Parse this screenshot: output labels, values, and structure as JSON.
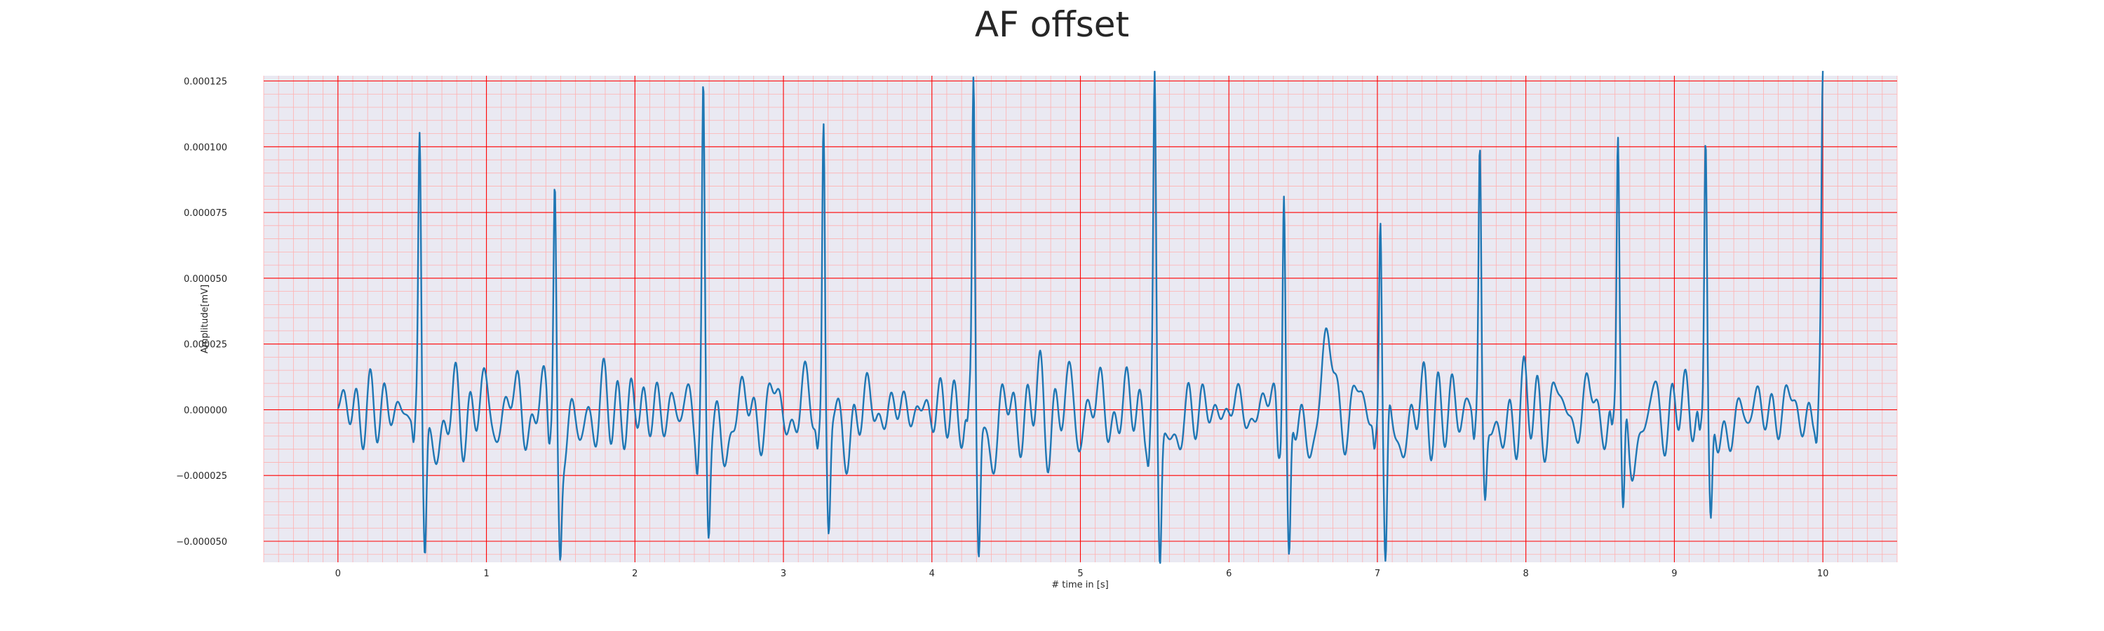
{
  "chart_data": {
    "type": "line",
    "title": "AF offset",
    "xlabel": "# time in [s]",
    "ylabel": "Amplitude[mV]",
    "xlim": [
      -0.5,
      10.5
    ],
    "ylim": [
      -5.8e-05,
      0.000127
    ],
    "x_ticks": [
      0,
      1,
      2,
      3,
      4,
      5,
      6,
      7,
      8,
      9,
      10
    ],
    "x_tick_labels": [
      "0",
      "1",
      "2",
      "3",
      "4",
      "5",
      "6",
      "7",
      "8",
      "9",
      "10"
    ],
    "y_ticks": [
      -5e-05,
      -2.5e-05,
      0,
      2.5e-05,
      5e-05,
      7.5e-05,
      0.0001,
      0.000125
    ],
    "y_tick_labels": [
      "−0.000050",
      "−0.000025",
      "0.000000",
      "0.000025",
      "0.000050",
      "0.000075",
      "0.000100",
      "0.000125"
    ],
    "grid": true,
    "major_grid_color": "#ff0000",
    "minor_grid_color": "#ffb0b0",
    "background_color": "#eae9f2",
    "line_color": "#1f77b4",
    "series": [
      {
        "name": "",
        "peaks": [
          {
            "t": 0.55,
            "r": 0.0001,
            "s": -5.4e-05
          },
          {
            "t": 1.46,
            "r": 8.6e-05,
            "s": -4.7e-05
          },
          {
            "t": 2.46,
            "r": 0.000117,
            "s": -4.3e-05
          },
          {
            "t": 3.27,
            "r": 0.000116,
            "s": -4.2e-05
          },
          {
            "t": 4.28,
            "r": 0.000122,
            "s": -5.2e-05
          },
          {
            "t": 5.5,
            "r": 0.000118,
            "s": -5.6e-05
          },
          {
            "t": 6.37,
            "r": 9.6e-05,
            "s": -6.3e-05
          },
          {
            "t": 7.02,
            "r": 8e-05,
            "s": -6.3e-05
          },
          {
            "t": 7.69,
            "r": 0.000103,
            "s": -3.1e-05
          },
          {
            "t": 8.62,
            "r": 0.000105,
            "s": -5.2e-05
          },
          {
            "t": 9.21,
            "r": 0.000108,
            "s": -4.8e-05
          },
          {
            "t": 10.0,
            "r": 0.000111,
            "s": -3e-06
          }
        ]
      }
    ]
  }
}
